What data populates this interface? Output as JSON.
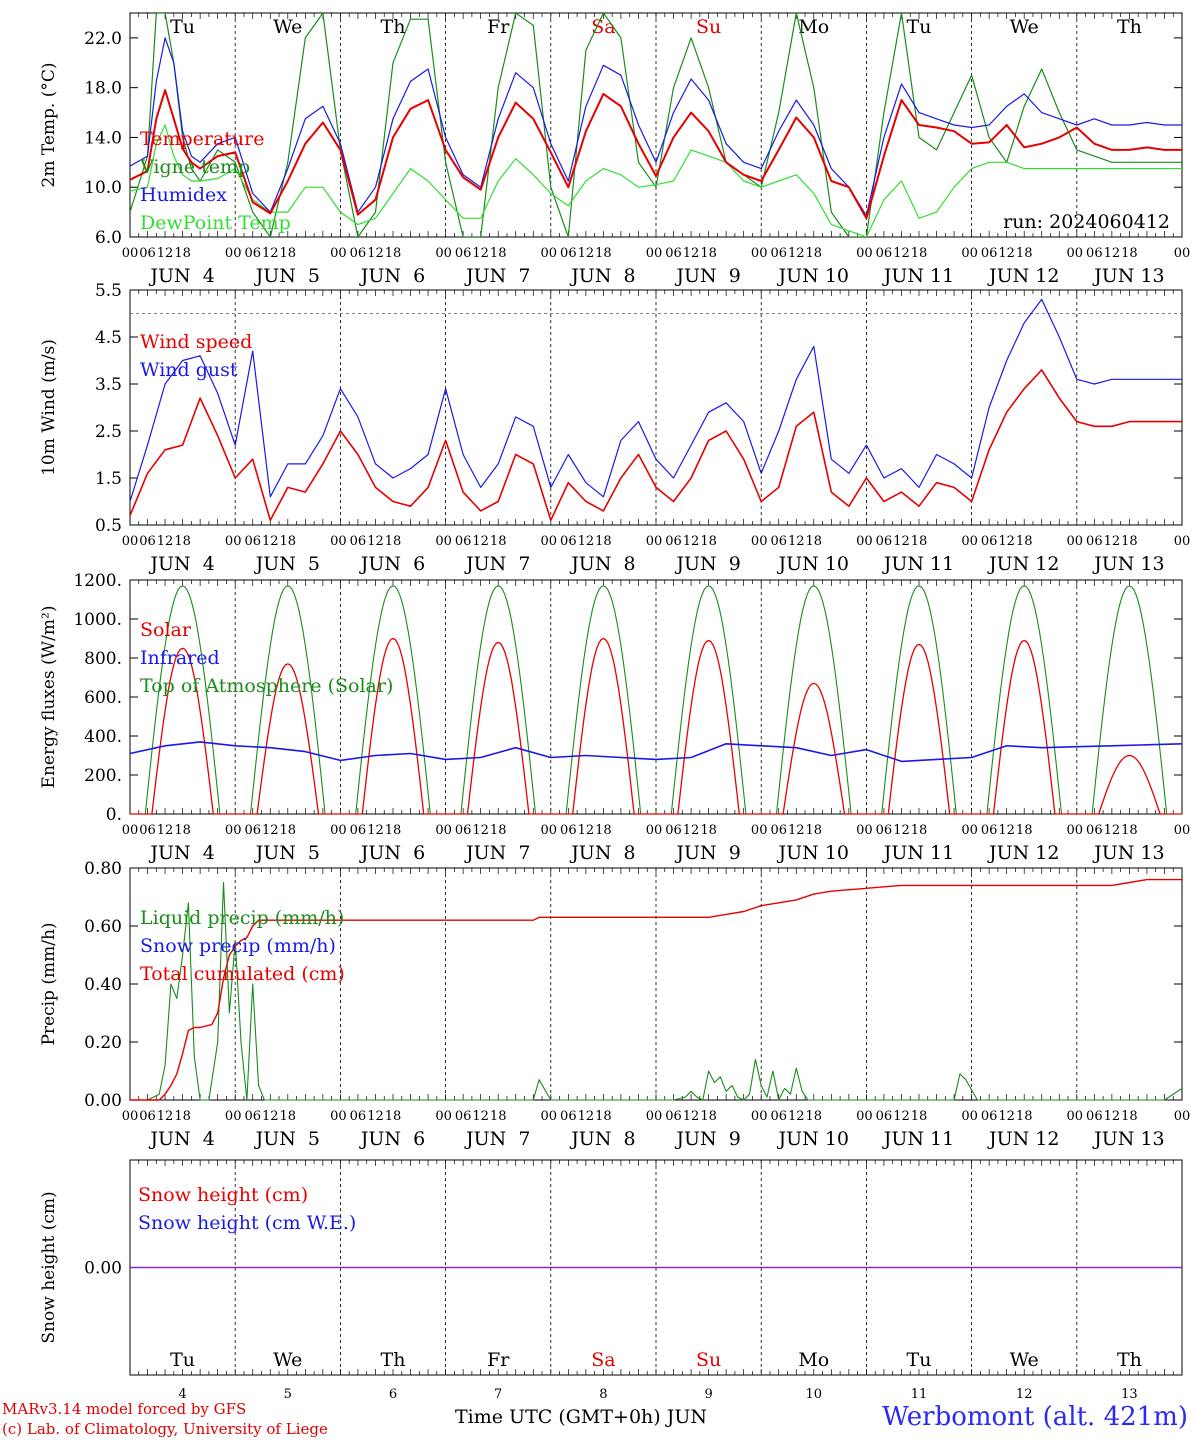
{
  "colors": {
    "red": "#e60000",
    "blue": "#1a1ae6",
    "green": "#1a8c1a",
    "lightgreen": "#33dd33",
    "purple": "#8a2bbe",
    "weekend": "#e60000",
    "text": "#000000"
  },
  "days": [
    "Tu",
    "We",
    "Th",
    "Fr",
    "Sa",
    "Su",
    "Mo",
    "Tu",
    "We",
    "Th"
  ],
  "weekend_days": [
    4,
    5
  ],
  "date_labels": [
    "JUN  4",
    "JUN  5",
    "JUN  6",
    "JUN  7",
    "JUN  8",
    "JUN  9",
    "JUN 10",
    "JUN 11",
    "JUN 12",
    "JUN 13"
  ],
  "hour_labels": [
    "00",
    "06",
    "12",
    "18"
  ],
  "bottom_day_numbers": [
    "4",
    "5",
    "6",
    "7",
    "8",
    "9",
    "10",
    "11",
    "12",
    "13"
  ],
  "run_label": "run: 2024060412",
  "footer": {
    "credit_line1": "MARv3.14 model forced by GFS",
    "credit_line2": "(c) Lab. of Climatology, University of Liege",
    "time_axis": "Time UTC (GMT+0h) JUN",
    "station": "Werbomont (alt. 421m)"
  },
  "chart_data": [
    {
      "type": "line",
      "ylabel": "2m Temp. (°C)",
      "ylim": [
        6.0,
        24.0
      ],
      "yticks": [
        "6.0",
        "10.0",
        "14.0",
        "18.0",
        "22.0"
      ],
      "grid": "vertical dashed at day boundaries",
      "legend": [
        "Temperature",
        "Vigne temp",
        "Humidex",
        "DewPoint Temp"
      ],
      "x_hours": [
        0,
        6,
        9,
        12,
        15,
        18,
        21,
        24,
        30,
        36,
        42,
        48,
        54,
        60,
        66,
        72,
        78,
        84,
        90,
        96,
        102,
        108,
        114,
        120,
        126,
        132,
        138,
        144,
        150,
        156,
        162,
        168,
        174,
        180,
        186,
        192,
        198,
        204,
        210,
        216,
        222,
        228,
        234,
        240,
        246,
        252,
        258,
        264,
        270,
        276,
        282,
        288,
        294,
        300,
        306,
        312,
        318,
        324,
        330,
        336,
        342,
        348,
        354,
        360
      ],
      "series": [
        {
          "name": "Temperature",
          "color": "red",
          "values": [
            10.6,
            11.3,
            15.5,
            17.8,
            15.5,
            13.1,
            12.0,
            11.5,
            12.5,
            12.8,
            8.8,
            7.9,
            10.5,
            13.5,
            15.2,
            13.0,
            7.8,
            9.0,
            14.0,
            16.3,
            17.0,
            13.0,
            10.8,
            9.8,
            14.0,
            16.8,
            15.5,
            12.8,
            10.0,
            14.5,
            17.5,
            16.5,
            13.5,
            10.9,
            14.0,
            16.0,
            14.5,
            12.0,
            11.0,
            10.5,
            13.0,
            15.6,
            14.0,
            10.5,
            10.0,
            7.5,
            12.5,
            17.0,
            15.0,
            14.8,
            14.5,
            13.5,
            13.6,
            15.0,
            13.2,
            13.5,
            14.0,
            14.8,
            13.5,
            13.0,
            13.0,
            13.2,
            13.0,
            13.0
          ]
        },
        {
          "name": "Humidex",
          "color": "blue",
          "values": [
            11.7,
            12.5,
            18.5,
            22.0,
            20.0,
            14.5,
            12.5,
            12.0,
            13.5,
            14.0,
            9.5,
            8.0,
            11.5,
            15.5,
            16.5,
            13.5,
            8.0,
            10.0,
            15.5,
            18.5,
            19.5,
            14.0,
            11.0,
            10.0,
            15.5,
            19.2,
            18.0,
            13.5,
            10.5,
            16.5,
            19.8,
            19.0,
            15.0,
            12.0,
            16.0,
            18.7,
            17.0,
            13.5,
            12.0,
            11.5,
            14.5,
            17.0,
            15.0,
            11.5,
            10.0,
            7.7,
            14.0,
            18.3,
            16.0,
            15.5,
            15.0,
            14.8,
            15.0,
            16.5,
            17.5,
            16.0,
            15.5,
            15.0,
            15.5,
            15.0,
            15.0,
            15.2,
            15.0,
            15.0
          ]
        },
        {
          "name": "DewPoint Temp",
          "color": "lightgreen",
          "values": [
            9.7,
            10.0,
            13.5,
            15.0,
            12.5,
            11.0,
            10.5,
            10.5,
            10.7,
            11.5,
            9.0,
            8.0,
            8.0,
            10.0,
            10.0,
            8.0,
            7.0,
            7.5,
            9.5,
            11.5,
            10.5,
            9.0,
            7.5,
            7.5,
            10.5,
            12.3,
            11.0,
            9.5,
            8.5,
            10.5,
            11.5,
            11.0,
            10.0,
            10.2,
            10.5,
            13.0,
            12.5,
            12.0,
            10.5,
            10.0,
            10.5,
            11.0,
            9.5,
            7.0,
            6.5,
            6.0,
            9.0,
            10.5,
            7.5,
            8.0,
            10.0,
            11.5,
            12.0,
            12.0,
            11.5,
            11.5,
            11.5,
            11.5,
            11.5,
            11.5,
            11.5,
            11.5,
            11.5,
            11.5
          ]
        },
        {
          "name": "Vigne temp",
          "color": "green",
          "values": [
            8.0,
            12.5,
            24.0,
            24.0,
            20.0,
            14.0,
            11.5,
            10.5,
            13.0,
            12.0,
            8.0,
            6.0,
            12.0,
            22.0,
            24.0,
            13.0,
            6.0,
            8.0,
            20.0,
            23.5,
            23.5,
            12.0,
            6.0,
            6.0,
            18.0,
            24.0,
            23.0,
            10.0,
            6.0,
            21.0,
            24.0,
            22.0,
            12.0,
            10.0,
            18.0,
            22.0,
            18.0,
            12.0,
            11.0,
            10.0,
            16.0,
            24.0,
            18.0,
            8.0,
            6.0,
            6.0,
            16.0,
            24.0,
            14.0,
            13.0,
            16.0,
            19.0,
            14.0,
            12.0,
            16.5,
            19.5,
            16.0,
            13.0,
            12.5,
            12.0,
            12.0,
            12.0,
            12.0,
            12.0
          ]
        }
      ]
    },
    {
      "type": "line",
      "ylabel": "10m Wind (m/s)",
      "ylim": [
        0.5,
        5.5
      ],
      "yticks": [
        "0.5",
        "1.5",
        "2.5",
        "3.5",
        "4.5",
        "5.5"
      ],
      "reference_line": 5.0,
      "legend": [
        "Wind speed",
        "Wind gust"
      ],
      "x_hours": [
        0,
        6,
        12,
        18,
        24,
        30,
        36,
        42,
        48,
        54,
        60,
        66,
        72,
        78,
        84,
        90,
        96,
        102,
        108,
        114,
        120,
        126,
        132,
        138,
        144,
        150,
        156,
        162,
        168,
        174,
        180,
        186,
        192,
        198,
        204,
        210,
        216,
        222,
        228,
        234,
        240,
        246,
        252,
        258,
        264,
        270,
        276,
        282,
        288,
        294,
        300,
        306,
        312,
        318,
        324,
        330,
        336,
        342,
        348,
        354,
        360
      ],
      "series": [
        {
          "name": "Wind speed",
          "color": "red",
          "values": [
            0.7,
            1.6,
            2.1,
            2.2,
            3.2,
            2.4,
            1.5,
            1.9,
            0.6,
            1.3,
            1.2,
            1.8,
            2.5,
            2.0,
            1.3,
            1.0,
            0.9,
            1.3,
            2.3,
            1.2,
            0.8,
            1.0,
            2.0,
            1.8,
            0.6,
            1.4,
            1.0,
            0.8,
            1.5,
            2.0,
            1.3,
            1.0,
            1.5,
            2.3,
            2.5,
            1.9,
            1.0,
            1.3,
            2.6,
            2.9,
            1.2,
            0.9,
            1.5,
            1.0,
            1.2,
            0.9,
            1.4,
            1.3,
            1.0,
            2.1,
            2.9,
            3.4,
            3.8,
            3.2,
            2.7,
            2.6,
            2.6,
            2.7,
            2.7,
            2.7,
            2.7
          ]
        },
        {
          "name": "Wind gust",
          "color": "blue",
          "values": [
            1.0,
            2.2,
            3.5,
            4.0,
            4.1,
            3.3,
            2.2,
            4.2,
            1.1,
            1.8,
            1.8,
            2.4,
            3.4,
            2.8,
            1.8,
            1.5,
            1.7,
            2.0,
            3.4,
            2.0,
            1.3,
            1.8,
            2.8,
            2.6,
            1.3,
            2.0,
            1.4,
            1.1,
            2.3,
            2.7,
            1.9,
            1.5,
            2.2,
            2.9,
            3.1,
            2.7,
            1.6,
            2.5,
            3.6,
            4.3,
            1.9,
            1.6,
            2.2,
            1.5,
            1.7,
            1.3,
            2.0,
            1.8,
            1.5,
            3.0,
            4.0,
            4.8,
            5.3,
            4.5,
            3.6,
            3.5,
            3.6,
            3.6,
            3.6,
            3.6,
            3.6
          ]
        }
      ]
    },
    {
      "type": "line",
      "ylabel": "Energy fluxes (W/m²)",
      "ylim": [
        0,
        1200
      ],
      "yticks": [
        "0.",
        "200.",
        "400.",
        "600.",
        "800.",
        "1000.",
        "1200."
      ],
      "legend": [
        "Solar",
        "Infrared",
        "Top of Atmosphere (Solar)"
      ],
      "toa_peak": 1170,
      "toa_sunrise_hour": 3.5,
      "toa_sunset_hour": 20.5,
      "solar_daily_peaks": [
        850,
        770,
        900,
        880,
        900,
        890,
        670,
        870,
        890,
        300
      ],
      "infrared": {
        "x_hours": [
          0,
          12,
          24,
          36,
          48,
          60,
          72,
          84,
          96,
          108,
          120,
          132,
          144,
          156,
          168,
          180,
          192,
          204,
          216,
          228,
          240,
          252,
          264,
          276,
          288,
          300,
          312,
          324,
          336,
          348,
          360
        ],
        "values": [
          310,
          350,
          370,
          350,
          340,
          320,
          275,
          300,
          310,
          280,
          290,
          340,
          290,
          300,
          290,
          280,
          290,
          360,
          350,
          340,
          300,
          330,
          270,
          280,
          290,
          350,
          340,
          345,
          350,
          355,
          360
        ]
      }
    },
    {
      "type": "line",
      "ylabel": "Precip (mm/h)",
      "ylim": [
        0.0,
        0.8
      ],
      "yticks": [
        "0.00",
        "0.20",
        "0.40",
        "0.60",
        "0.80"
      ],
      "legend": [
        "Liquid precip (mm/h)",
        "Snow precip (mm/h)",
        "Total cumulated (cm)"
      ],
      "series": [
        {
          "name": "Liquid precip (mm/h)",
          "color": "green",
          "x_hours": [
            0,
            6,
            10,
            12,
            14,
            16,
            18,
            20,
            22,
            24,
            27,
            30,
            32,
            34,
            36,
            38,
            40,
            42,
            44,
            46,
            48,
            60,
            72,
            84,
            96,
            108,
            120,
            132,
            138,
            140,
            144,
            156,
            168,
            180,
            186,
            190,
            192,
            194,
            196,
            198,
            200,
            202,
            204,
            206,
            208,
            210,
            212,
            214,
            216,
            218,
            220,
            222,
            224,
            226,
            228,
            230,
            232,
            234,
            240,
            252,
            264,
            276,
            282,
            284,
            286,
            290,
            300,
            312,
            324,
            336,
            342,
            348,
            354,
            360
          ],
          "values": [
            0,
            0,
            0.02,
            0.12,
            0.4,
            0.35,
            0.5,
            0.68,
            0.15,
            0,
            0,
            0.2,
            0.75,
            0.3,
            0.55,
            0.2,
            0,
            0.4,
            0.05,
            0,
            0,
            0,
            0,
            0,
            0,
            0,
            0,
            0,
            0,
            0.07,
            0,
            0,
            0,
            0,
            0,
            0.01,
            0.03,
            0.01,
            0,
            0.1,
            0.06,
            0.08,
            0.03,
            0.05,
            0.01,
            0,
            0.02,
            0.14,
            0.05,
            0.01,
            0.1,
            0,
            0.04,
            0.02,
            0.11,
            0.03,
            0,
            0,
            0,
            0,
            0,
            0,
            0,
            0.09,
            0.07,
            0,
            0,
            0,
            0,
            0,
            0,
            0,
            0,
            0.04
          ]
        },
        {
          "name": "Total cumulated (cm)",
          "color": "red",
          "x_hours": [
            0,
            6,
            10,
            12,
            14,
            16,
            18,
            20,
            22,
            24,
            28,
            30,
            32,
            34,
            36,
            38,
            40,
            42,
            44,
            46,
            48,
            72,
            96,
            120,
            138,
            140,
            150,
            180,
            198,
            204,
            210,
            216,
            222,
            228,
            234,
            240,
            252,
            264,
            276,
            300,
            312,
            324,
            336,
            342,
            348,
            354,
            360
          ],
          "values": [
            0,
            0,
            0,
            0.02,
            0.05,
            0.09,
            0.16,
            0.24,
            0.25,
            0.25,
            0.26,
            0.3,
            0.42,
            0.5,
            0.53,
            0.55,
            0.56,
            0.6,
            0.62,
            0.62,
            0.62,
            0.62,
            0.62,
            0.62,
            0.62,
            0.63,
            0.63,
            0.63,
            0.63,
            0.64,
            0.65,
            0.67,
            0.68,
            0.69,
            0.71,
            0.72,
            0.73,
            0.74,
            0.74,
            0.74,
            0.74,
            0.74,
            0.74,
            0.75,
            0.76,
            0.76,
            0.76
          ]
        }
      ]
    },
    {
      "type": "line",
      "ylabel": "Snow height (cm)",
      "yticks": [
        "0.00"
      ],
      "legend": [
        "Snow height (cm)",
        "Snow height (cm W.E.)"
      ],
      "series": [
        {
          "name": "Snow height (cm)",
          "color": "purple",
          "x_hours": [
            0,
            360
          ],
          "values": [
            0.0,
            0.0
          ]
        }
      ]
    }
  ]
}
